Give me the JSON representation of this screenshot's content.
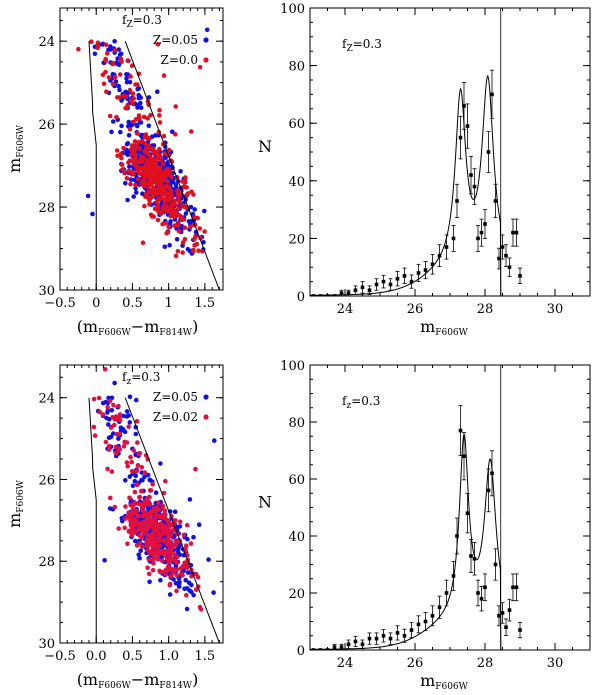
{
  "chart_data": [
    {
      "type": "scatter",
      "panel": "cmd-top",
      "xlabel": "(m",
      "xlabel_sub1": "F606W",
      "xlabel_mid": "−m",
      "xlabel_sub2": "F814W",
      "xlabel_end": ")",
      "ylabel": "m",
      "ylabel_sub": "F606W",
      "xlim": [
        -0.5,
        1.75
      ],
      "ylim": [
        30,
        23.2
      ],
      "xticks": [
        "−0.5",
        "0",
        "0.5",
        "1",
        "1.5"
      ],
      "xtick_values": [
        -0.5,
        0,
        0.5,
        1,
        1.5
      ],
      "yticks": [
        "24",
        "26",
        "28",
        "30"
      ],
      "ytick_values": [
        24,
        26,
        28,
        30
      ],
      "legend_f_label": "f",
      "legend_f_sub": "Z",
      "legend_f_value": "=0.3",
      "series": [
        {
          "name": "Z=0.05",
          "color": "#1010e0",
          "n": 480,
          "seed": 11
        },
        {
          "name": "Z=0.0",
          "color": "#e01020",
          "n": 420,
          "seed": 23
        }
      ],
      "left_boundary": {
        "x": [
          0.0,
          0.0,
          -0.05,
          -0.05,
          -0.1
        ],
        "y": [
          30,
          26.5,
          25.7,
          25.5,
          24.0
        ]
      },
      "right_boundary": {
        "x": [
          0.4,
          1.7
        ],
        "y": [
          24.0,
          30
        ]
      }
    },
    {
      "type": "line",
      "panel": "lf-top",
      "xlabel": "m",
      "xlabel_sub": "F606W",
      "ylabel": "N",
      "xlim": [
        23,
        31
      ],
      "ylim": [
        0,
        100
      ],
      "xticks": [
        "24",
        "26",
        "28",
        "30"
      ],
      "xtick_values": [
        24,
        26,
        28,
        30
      ],
      "yticks": [
        "0",
        "20",
        "40",
        "60",
        "80",
        "100"
      ],
      "ytick_values": [
        0,
        20,
        40,
        60,
        80,
        100
      ],
      "annotation_label": "f",
      "annotation_sub": "Z",
      "annotation_value": "=0.3",
      "cutoff_x": 28.45,
      "points": {
        "x": [
          23.1,
          23.3,
          23.5,
          23.7,
          23.9,
          24.1,
          24.3,
          24.5,
          24.7,
          24.9,
          25.1,
          25.3,
          25.5,
          25.7,
          25.9,
          26.1,
          26.3,
          26.5,
          26.7,
          26.9,
          27.1,
          27.2,
          27.3,
          27.4,
          27.5,
          27.6,
          27.7,
          27.8,
          27.9,
          28.0,
          28.1,
          28.2,
          28.3,
          28.4,
          28.5,
          28.6,
          28.7,
          28.8,
          28.9,
          29.0
        ],
        "y": [
          0,
          0,
          0,
          0,
          1,
          1,
          2,
          3,
          2,
          4,
          5,
          4,
          6,
          7,
          5,
          8,
          9,
          11,
          14,
          17,
          20,
          33,
          55,
          66,
          59,
          42,
          38,
          20,
          22,
          25,
          50,
          70,
          33,
          13,
          17,
          14,
          10,
          22,
          22,
          7
        ],
        "err": [
          0,
          0,
          0,
          0,
          1,
          1,
          1.5,
          2,
          1.5,
          2,
          2.2,
          2,
          2.5,
          2.7,
          2.3,
          3,
          3,
          3.4,
          3.8,
          4.2,
          4.5,
          5.8,
          7.4,
          8.1,
          7.7,
          6.5,
          6.2,
          4.5,
          4.7,
          5,
          7.1,
          8.4,
          5.8,
          3.6,
          4.2,
          3.8,
          3.2,
          4.7,
          4.7,
          2.7
        ]
      },
      "model": {
        "bg_amp": 8,
        "bg_center": 27.3,
        "bg_width": 0.9,
        "peak1": {
          "center": 27.3,
          "amp": 58,
          "width": 0.18
        },
        "peak2": {
          "center": 28.08,
          "amp": 64,
          "width": 0.2
        }
      }
    },
    {
      "type": "scatter",
      "panel": "cmd-bottom",
      "xlabel": "(m",
      "xlabel_sub1": "F606W",
      "xlabel_mid": "−m",
      "xlabel_sub2": "F814W",
      "xlabel_end": ")",
      "ylabel": "m",
      "ylabel_sub": "F606W",
      "xlim": [
        -0.5,
        1.75
      ],
      "ylim": [
        30,
        23.2
      ],
      "xticks": [
        "−0.5",
        "0.0",
        "0.5",
        "1.0",
        "1.5"
      ],
      "xtick_values": [
        -0.5,
        0,
        0.5,
        1,
        1.5
      ],
      "yticks": [
        "24",
        "26",
        "28",
        "30"
      ],
      "ytick_values": [
        24,
        26,
        28,
        30
      ],
      "legend_f_label": "f",
      "legend_f_sub": "z",
      "legend_f_value": "=0.3",
      "series": [
        {
          "name": "Z=0.05",
          "color": "#1010e0",
          "n": 380,
          "seed": 37
        },
        {
          "name": "Z=0.02",
          "color": "#e01040",
          "n": 380,
          "seed": 53
        }
      ],
      "left_boundary": {
        "x": [
          0.0,
          0.0,
          -0.05,
          -0.05,
          -0.1
        ],
        "y": [
          30,
          26.5,
          25.7,
          25.5,
          24.0
        ]
      },
      "right_boundary": {
        "x": [
          0.4,
          1.7
        ],
        "y": [
          24.0,
          30
        ]
      }
    },
    {
      "type": "line",
      "panel": "lf-bottom",
      "xlabel": "m",
      "xlabel_sub": "F606W",
      "ylabel": "N",
      "xlim": [
        23,
        31
      ],
      "ylim": [
        0,
        100
      ],
      "xticks": [
        "24",
        "26",
        "28",
        "30"
      ],
      "xtick_values": [
        24,
        26,
        28,
        30
      ],
      "yticks": [
        "0",
        "20",
        "40",
        "60",
        "80",
        "100"
      ],
      "ytick_values": [
        0,
        20,
        40,
        60,
        80,
        100
      ],
      "annotation_label": "f",
      "annotation_sub": "z",
      "annotation_value": "=0.3",
      "cutoff_x": 28.45,
      "points": {
        "x": [
          23.1,
          23.3,
          23.5,
          23.7,
          23.9,
          24.1,
          24.3,
          24.5,
          24.7,
          24.9,
          25.1,
          25.3,
          25.5,
          25.7,
          25.9,
          26.1,
          26.3,
          26.5,
          26.7,
          26.9,
          27.1,
          27.2,
          27.3,
          27.4,
          27.5,
          27.6,
          27.7,
          27.8,
          27.9,
          28.0,
          28.1,
          28.2,
          28.3,
          28.4,
          28.5,
          28.6,
          28.7,
          28.8,
          28.9,
          29.0
        ],
        "y": [
          0,
          0,
          0,
          1,
          1,
          2,
          3,
          2,
          4,
          4,
          5,
          4,
          6,
          5,
          7,
          9,
          10,
          12,
          15,
          20,
          26,
          40,
          77,
          68,
          48,
          33,
          32,
          20,
          18,
          22,
          56,
          62,
          30,
          12,
          13,
          8,
          14,
          22,
          22,
          7
        ],
        "err": [
          0,
          0,
          0,
          1,
          1,
          1.5,
          1.8,
          1.5,
          2,
          2,
          2.2,
          2,
          2.5,
          2.3,
          2.7,
          3,
          3.2,
          3.5,
          3.9,
          4.5,
          5.1,
          6.3,
          8.8,
          8.3,
          6.9,
          5.8,
          5.7,
          4.5,
          4.3,
          4.7,
          7.5,
          7.9,
          5.5,
          3.5,
          3.6,
          2.9,
          3.8,
          4.7,
          4.7,
          2.7
        ]
      },
      "model": {
        "bg_amp": 8,
        "bg_center": 27.3,
        "bg_width": 0.9,
        "peak1": {
          "center": 27.4,
          "amp": 62,
          "width": 0.16
        },
        "peak2": {
          "center": 28.15,
          "amp": 55,
          "width": 0.2
        }
      }
    }
  ]
}
